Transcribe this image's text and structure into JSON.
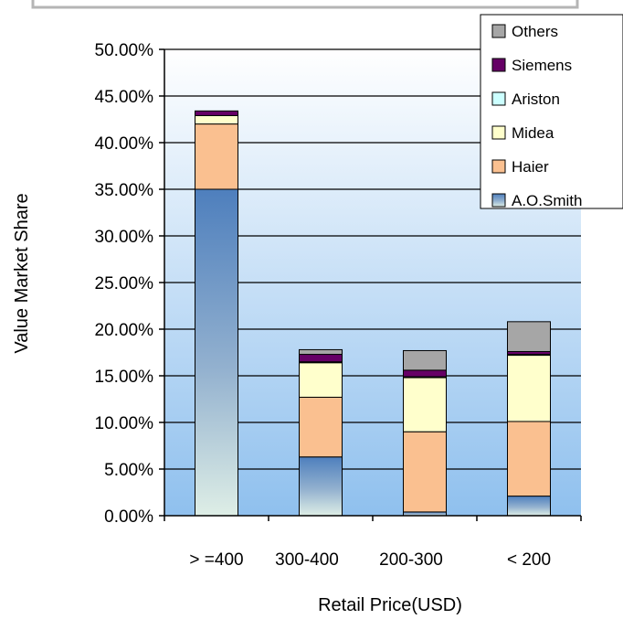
{
  "chart_data": {
    "type": "bar",
    "stacked": true,
    "categories": [
      "> =400",
      "300-400",
      "200-300",
      "< 200"
    ],
    "xlabel": "Retail Price(USD)",
    "ylabel": "Value Market Share",
    "ylim": [
      0,
      0.5
    ],
    "yticks": [
      "0.00%",
      "5.00%",
      "10.00%",
      "15.00%",
      "20.00%",
      "25.00%",
      "30.00%",
      "35.00%",
      "40.00%",
      "45.00%",
      "50.00%"
    ],
    "grid": true,
    "legend_position": "top-right",
    "series": [
      {
        "name": "A.O.Smith",
        "color": "#4f81bd",
        "values": [
          0.35,
          0.063,
          0.004,
          0.021
        ]
      },
      {
        "name": "Haier",
        "color": "#fac090",
        "values": [
          0.07,
          0.064,
          0.086,
          0.08
        ]
      },
      {
        "name": "Midea",
        "color": "#ffffcc",
        "values": [
          0.009,
          0.037,
          0.058,
          0.071
        ]
      },
      {
        "name": "Ariston",
        "color": "#ccffff",
        "values": [
          0.0,
          0.001,
          0.001,
          0.001
        ]
      },
      {
        "name": "Siemens",
        "color": "#660066",
        "values": [
          0.005,
          0.008,
          0.007,
          0.003
        ]
      },
      {
        "name": "Others",
        "color": "#a6a6a6",
        "values": [
          0.0,
          0.005,
          0.021,
          0.032
        ]
      }
    ]
  }
}
